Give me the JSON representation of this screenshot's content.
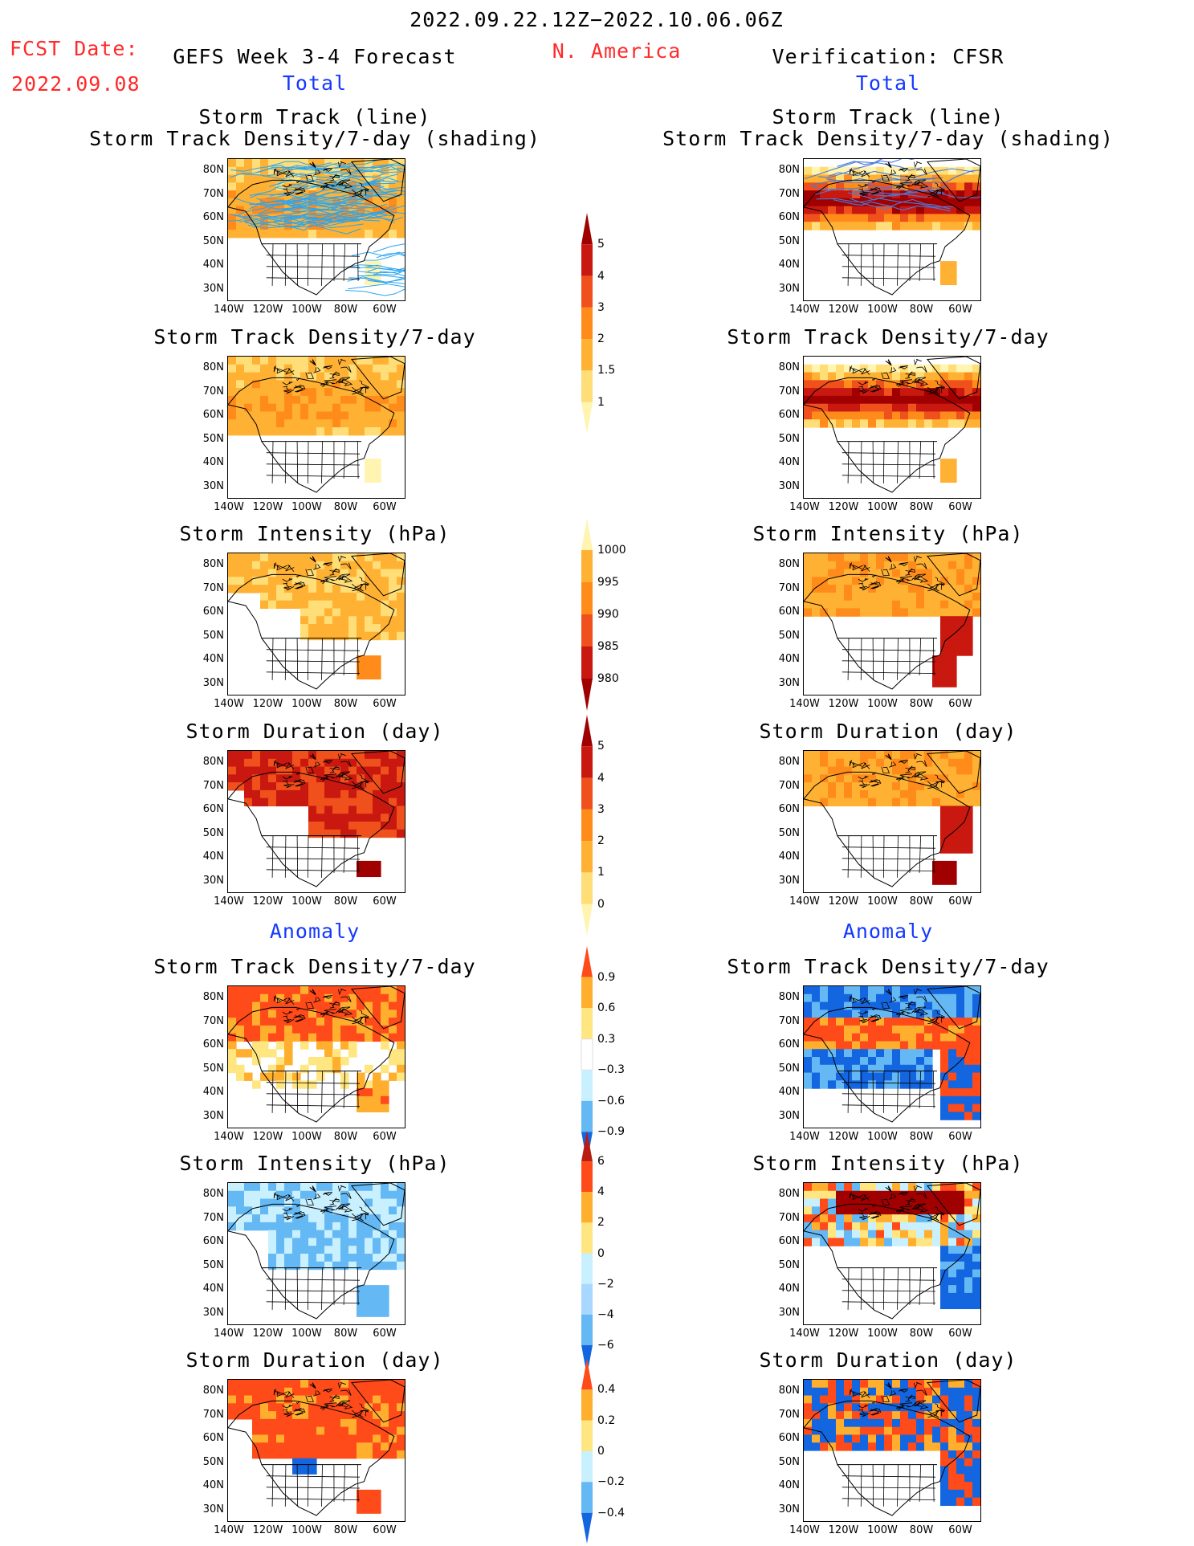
{
  "header": {
    "period": "2022.09.22.12Z−2022.10.06.06Z",
    "fcst_label": "FCST Date:",
    "fcst_date": "2022.09.08",
    "forecast_title": "GEFS Week 3-4 Forecast",
    "region": "N. America",
    "verification_title": "Verification: CFSR",
    "total_left": "Total",
    "total_right": "Total",
    "anomaly_left": "Anomaly",
    "anomaly_right": "Anomaly"
  },
  "colors": {
    "text_red": "#ff2a2a",
    "text_blue": "#1438ff",
    "track_line": "#2aa6f0",
    "scale_warm": [
      "#fff4b0",
      "#ffdd77",
      "#ffb133",
      "#ff8c1a",
      "#f0501c",
      "#c8180f",
      "#a00000"
    ],
    "scale_anom_warm": [
      "#ffe680",
      "#ffae2e",
      "#ff4a1a"
    ],
    "scale_anom_cool": [
      "#c8f0ff",
      "#64b8f4",
      "#1466e0"
    ]
  },
  "axes": {
    "lat_ticks": [
      "80N",
      "70N",
      "60N",
      "50N",
      "40N",
      "30N"
    ],
    "lon_ticks": [
      "140W",
      "120W",
      "100W",
      "80W",
      "60W"
    ]
  },
  "chart_data": [
    {
      "type": "heatmap",
      "column": "GEFS",
      "section": "Total",
      "title_line1": "Storm Track (line)",
      "title_line2": "Storm Track Density/7-day (shading)",
      "field": "density",
      "source": "forecast",
      "tracks": true
    },
    {
      "type": "heatmap",
      "column": "GEFS",
      "section": "Total",
      "title_line1": "Storm Track Density/7-day",
      "title_line2": "",
      "field": "density",
      "source": "forecast",
      "tracks": false
    },
    {
      "type": "heatmap",
      "column": "GEFS",
      "section": "Total",
      "title_line1": "Storm Intensity (hPa)",
      "title_line2": "",
      "field": "intensity",
      "source": "forecast",
      "tracks": false
    },
    {
      "type": "heatmap",
      "column": "GEFS",
      "section": "Total",
      "title_line1": "Storm Duration (day)",
      "title_line2": "",
      "field": "duration",
      "source": "forecast",
      "tracks": false
    },
    {
      "type": "heatmap",
      "column": "GEFS",
      "section": "Anomaly",
      "title_line1": "Storm Track Density/7-day",
      "title_line2": "",
      "field": "density_anom",
      "source": "forecast",
      "tracks": false
    },
    {
      "type": "heatmap",
      "column": "GEFS",
      "section": "Anomaly",
      "title_line1": "Storm Intensity (hPa)",
      "title_line2": "",
      "field": "intensity_anom",
      "source": "forecast",
      "tracks": false
    },
    {
      "type": "heatmap",
      "column": "GEFS",
      "section": "Anomaly",
      "title_line1": "Storm Duration (day)",
      "title_line2": "",
      "field": "duration_anom",
      "source": "forecast",
      "tracks": false
    },
    {
      "type": "heatmap",
      "column": "CFSR",
      "section": "Total",
      "title_line1": "Storm Track (line)",
      "title_line2": "Storm Track Density/7-day (shading)",
      "field": "density",
      "source": "verification",
      "tracks": true
    },
    {
      "type": "heatmap",
      "column": "CFSR",
      "section": "Total",
      "title_line1": "Storm Track Density/7-day",
      "title_line2": "",
      "field": "density",
      "source": "verification",
      "tracks": false
    },
    {
      "type": "heatmap",
      "column": "CFSR",
      "section": "Total",
      "title_line1": "Storm Intensity (hPa)",
      "title_line2": "",
      "field": "intensity",
      "source": "verification",
      "tracks": false
    },
    {
      "type": "heatmap",
      "column": "CFSR",
      "section": "Total",
      "title_line1": "Storm Duration (day)",
      "title_line2": "",
      "field": "duration",
      "source": "verification",
      "tracks": false
    },
    {
      "type": "heatmap",
      "column": "CFSR",
      "section": "Anomaly",
      "title_line1": "Storm Track Density/7-day",
      "title_line2": "",
      "field": "density_anom",
      "source": "verification",
      "tracks": false
    },
    {
      "type": "heatmap",
      "column": "CFSR",
      "section": "Anomaly",
      "title_line1": "Storm Intensity (hPa)",
      "title_line2": "",
      "field": "intensity_anom",
      "source": "verification",
      "tracks": false
    },
    {
      "type": "heatmap",
      "column": "CFSR",
      "section": "Anomaly",
      "title_line1": "Storm Duration (day)",
      "title_line2": "",
      "field": "duration_anom",
      "source": "verification",
      "tracks": false
    }
  ],
  "colorbars": [
    {
      "name": "density-colorbar",
      "labels": [
        "5",
        "4",
        "3",
        "2",
        "1.5",
        "1"
      ],
      "colors": [
        "#a00000",
        "#c8180f",
        "#f0501c",
        "#ff8c1a",
        "#ffb133",
        "#ffdd77",
        "#fff4b0"
      ]
    },
    {
      "name": "intensity-colorbar",
      "labels": [
        "1000",
        "995",
        "990",
        "985",
        "980"
      ],
      "colors": [
        "#fff4b0",
        "#ffb133",
        "#ff8c1a",
        "#f0501c",
        "#c8180f",
        "#a00000"
      ]
    },
    {
      "name": "duration-colorbar",
      "labels": [
        "5",
        "4",
        "3",
        "2",
        "1",
        "0"
      ],
      "colors": [
        "#a00000",
        "#c8180f",
        "#f0501c",
        "#ff8c1a",
        "#ffb133",
        "#ffdd77",
        "#fff4b0"
      ]
    },
    {
      "name": "density-anomaly-colorbar",
      "labels": [
        "0.9",
        "0.6",
        "0.3",
        "−0.3",
        "−0.6",
        "−0.9"
      ],
      "colors": [
        "#ff4a1a",
        "#ffae2e",
        "#ffe680",
        "#ffffff",
        "#c8f0ff",
        "#64b8f4",
        "#1466e0"
      ]
    },
    {
      "name": "intensity-anomaly-colorbar",
      "labels": [
        "6",
        "4",
        "2",
        "0",
        "−2",
        "−4",
        "−6"
      ],
      "colors": [
        "#b81c12",
        "#ff4a1a",
        "#ffae2e",
        "#ffe680",
        "#c8f0ff",
        "#a8d8ff",
        "#64b8f4",
        "#1466e0"
      ]
    },
    {
      "name": "duration-anomaly-colorbar",
      "labels": [
        "0.4",
        "0.2",
        "0",
        "−0.2",
        "−0.4"
      ],
      "colors": [
        "#ff4a1a",
        "#ffae2e",
        "#ffe680",
        "#c8f0ff",
        "#64b8f4",
        "#1466e0"
      ]
    }
  ]
}
